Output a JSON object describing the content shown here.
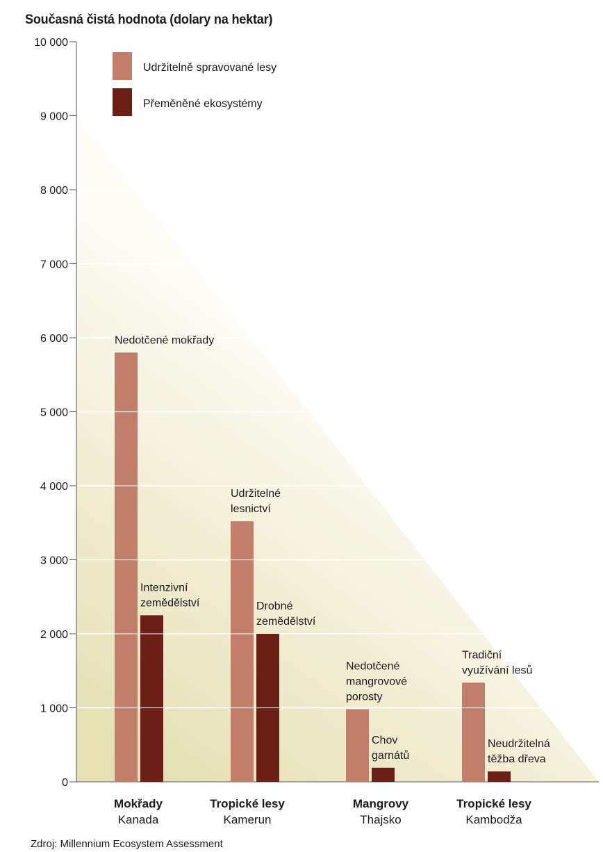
{
  "chart_data": {
    "type": "bar",
    "title": "Současná čistá hodnota (dolary na hektar)",
    "ylim": [
      0,
      10000
    ],
    "yticks": [
      0,
      1000,
      2000,
      3000,
      4000,
      5000,
      6000,
      7000,
      8000,
      9000,
      10000
    ],
    "ytick_labels": [
      "0",
      "1 000",
      "2 000",
      "3 000",
      "4 000",
      "5 000",
      "6 000",
      "7 000",
      "8 000",
      "9 000",
      "10 000"
    ],
    "legend_position": "top-left",
    "categories": [
      {
        "name": "Mokřady",
        "region": "Kanada"
      },
      {
        "name": "Tropické lesy",
        "region": "Kamerun"
      },
      {
        "name": "Mangrovy",
        "region": "Thajsko"
      },
      {
        "name": "Tropické lesy",
        "region": "Kambodža"
      }
    ],
    "series": [
      {
        "name": "Udržitelně spravované lesy",
        "color": "#c17f6b",
        "values": [
          5800,
          3520,
          980,
          1340
        ],
        "annotations": [
          [
            "Nedotčené mokřady"
          ],
          [
            "Udržitelné",
            "lesnictví"
          ],
          [
            "Nedotčené",
            "mangrovové",
            "porosty"
          ],
          [
            "Tradiční",
            "využívání lesů"
          ]
        ]
      },
      {
        "name": "Přeměněné ekosystémy",
        "color": "#6b1f16",
        "values": [
          2250,
          2000,
          190,
          140
        ],
        "annotations": [
          [
            "Intenzivní",
            "zemědělství"
          ],
          [
            "Drobné",
            "zemědělství"
          ],
          [
            "Chov",
            "garnátů"
          ],
          [
            "Neudržitelná",
            "těžba dřeva"
          ]
        ]
      }
    ]
  },
  "source": "Zdroj:  Millennium Ecosystem Assessment"
}
